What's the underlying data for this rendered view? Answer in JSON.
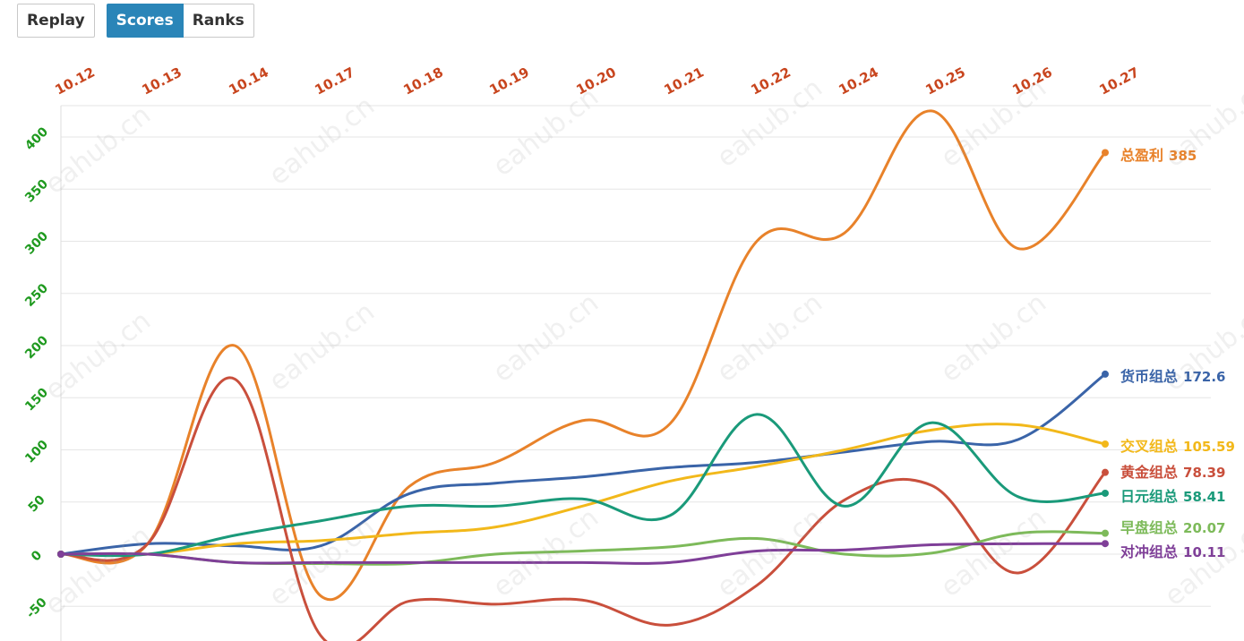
{
  "toolbar": {
    "replay_label": "Replay",
    "scores_label": "Scores",
    "ranks_label": "Ranks",
    "active_tab": "Scores"
  },
  "watermark_text": "eahub.cn",
  "colors": {
    "x_tick": "#c8451e",
    "y_tick": "#1f9a1f",
    "grid": "#e6e6e6",
    "active_button": "#2a85b8"
  },
  "chart_data": {
    "type": "line",
    "categories": [
      "10.12",
      "10.13",
      "10.14",
      "10.17",
      "10.18",
      "10.19",
      "10.20",
      "10.21",
      "10.22",
      "10.24",
      "10.25",
      "10.26",
      "10.27"
    ],
    "ylim": [
      -80,
      430
    ],
    "yticks": [
      -50,
      0,
      50,
      100,
      150,
      200,
      250,
      300,
      350,
      400
    ],
    "grid": true,
    "x_axis_position": "top",
    "series": [
      {
        "name": "总盈利",
        "label_value": "385",
        "color": "#e8822a",
        "values": [
          0,
          10,
          200,
          -40,
          65,
          88,
          128,
          125,
          300,
          308,
          425,
          293,
          385
        ]
      },
      {
        "name": "货币组总",
        "label_value": "172.6",
        "color": "#3a64a8",
        "values": [
          0,
          10,
          8,
          8,
          58,
          68,
          74,
          83,
          88,
          98,
          108,
          110,
          172.6
        ]
      },
      {
        "name": "交叉组总",
        "label_value": "105.59",
        "color": "#f2b81a",
        "values": [
          0,
          0,
          10,
          13,
          20,
          26,
          46,
          70,
          84,
          100,
          119,
          124,
          105.59
        ]
      },
      {
        "name": "黄金组总",
        "label_value": "78.39",
        "color": "#c94f3c",
        "values": [
          0,
          10,
          168,
          -78,
          -45,
          -48,
          -44,
          -68,
          -30,
          52,
          66,
          -18,
          78.39
        ]
      },
      {
        "name": "日元组总",
        "label_value": "58.41",
        "color": "#1a9a7a",
        "values": [
          0,
          0,
          18,
          32,
          46,
          46,
          53,
          37,
          134,
          46,
          126,
          55,
          58.41
        ]
      },
      {
        "name": "早盘组总",
        "label_value": "20.07",
        "color": "#7dba5a",
        "values": [
          0,
          0,
          -8,
          -9,
          -9,
          0,
          3,
          7,
          15,
          0,
          1,
          20,
          20.07
        ]
      },
      {
        "name": "对冲组总",
        "label_value": "10.11",
        "color": "#7f3f98",
        "values": [
          0,
          0,
          -8,
          -8,
          -8,
          -8,
          -8,
          -8,
          3,
          4,
          9,
          10,
          10.11
        ]
      }
    ]
  }
}
